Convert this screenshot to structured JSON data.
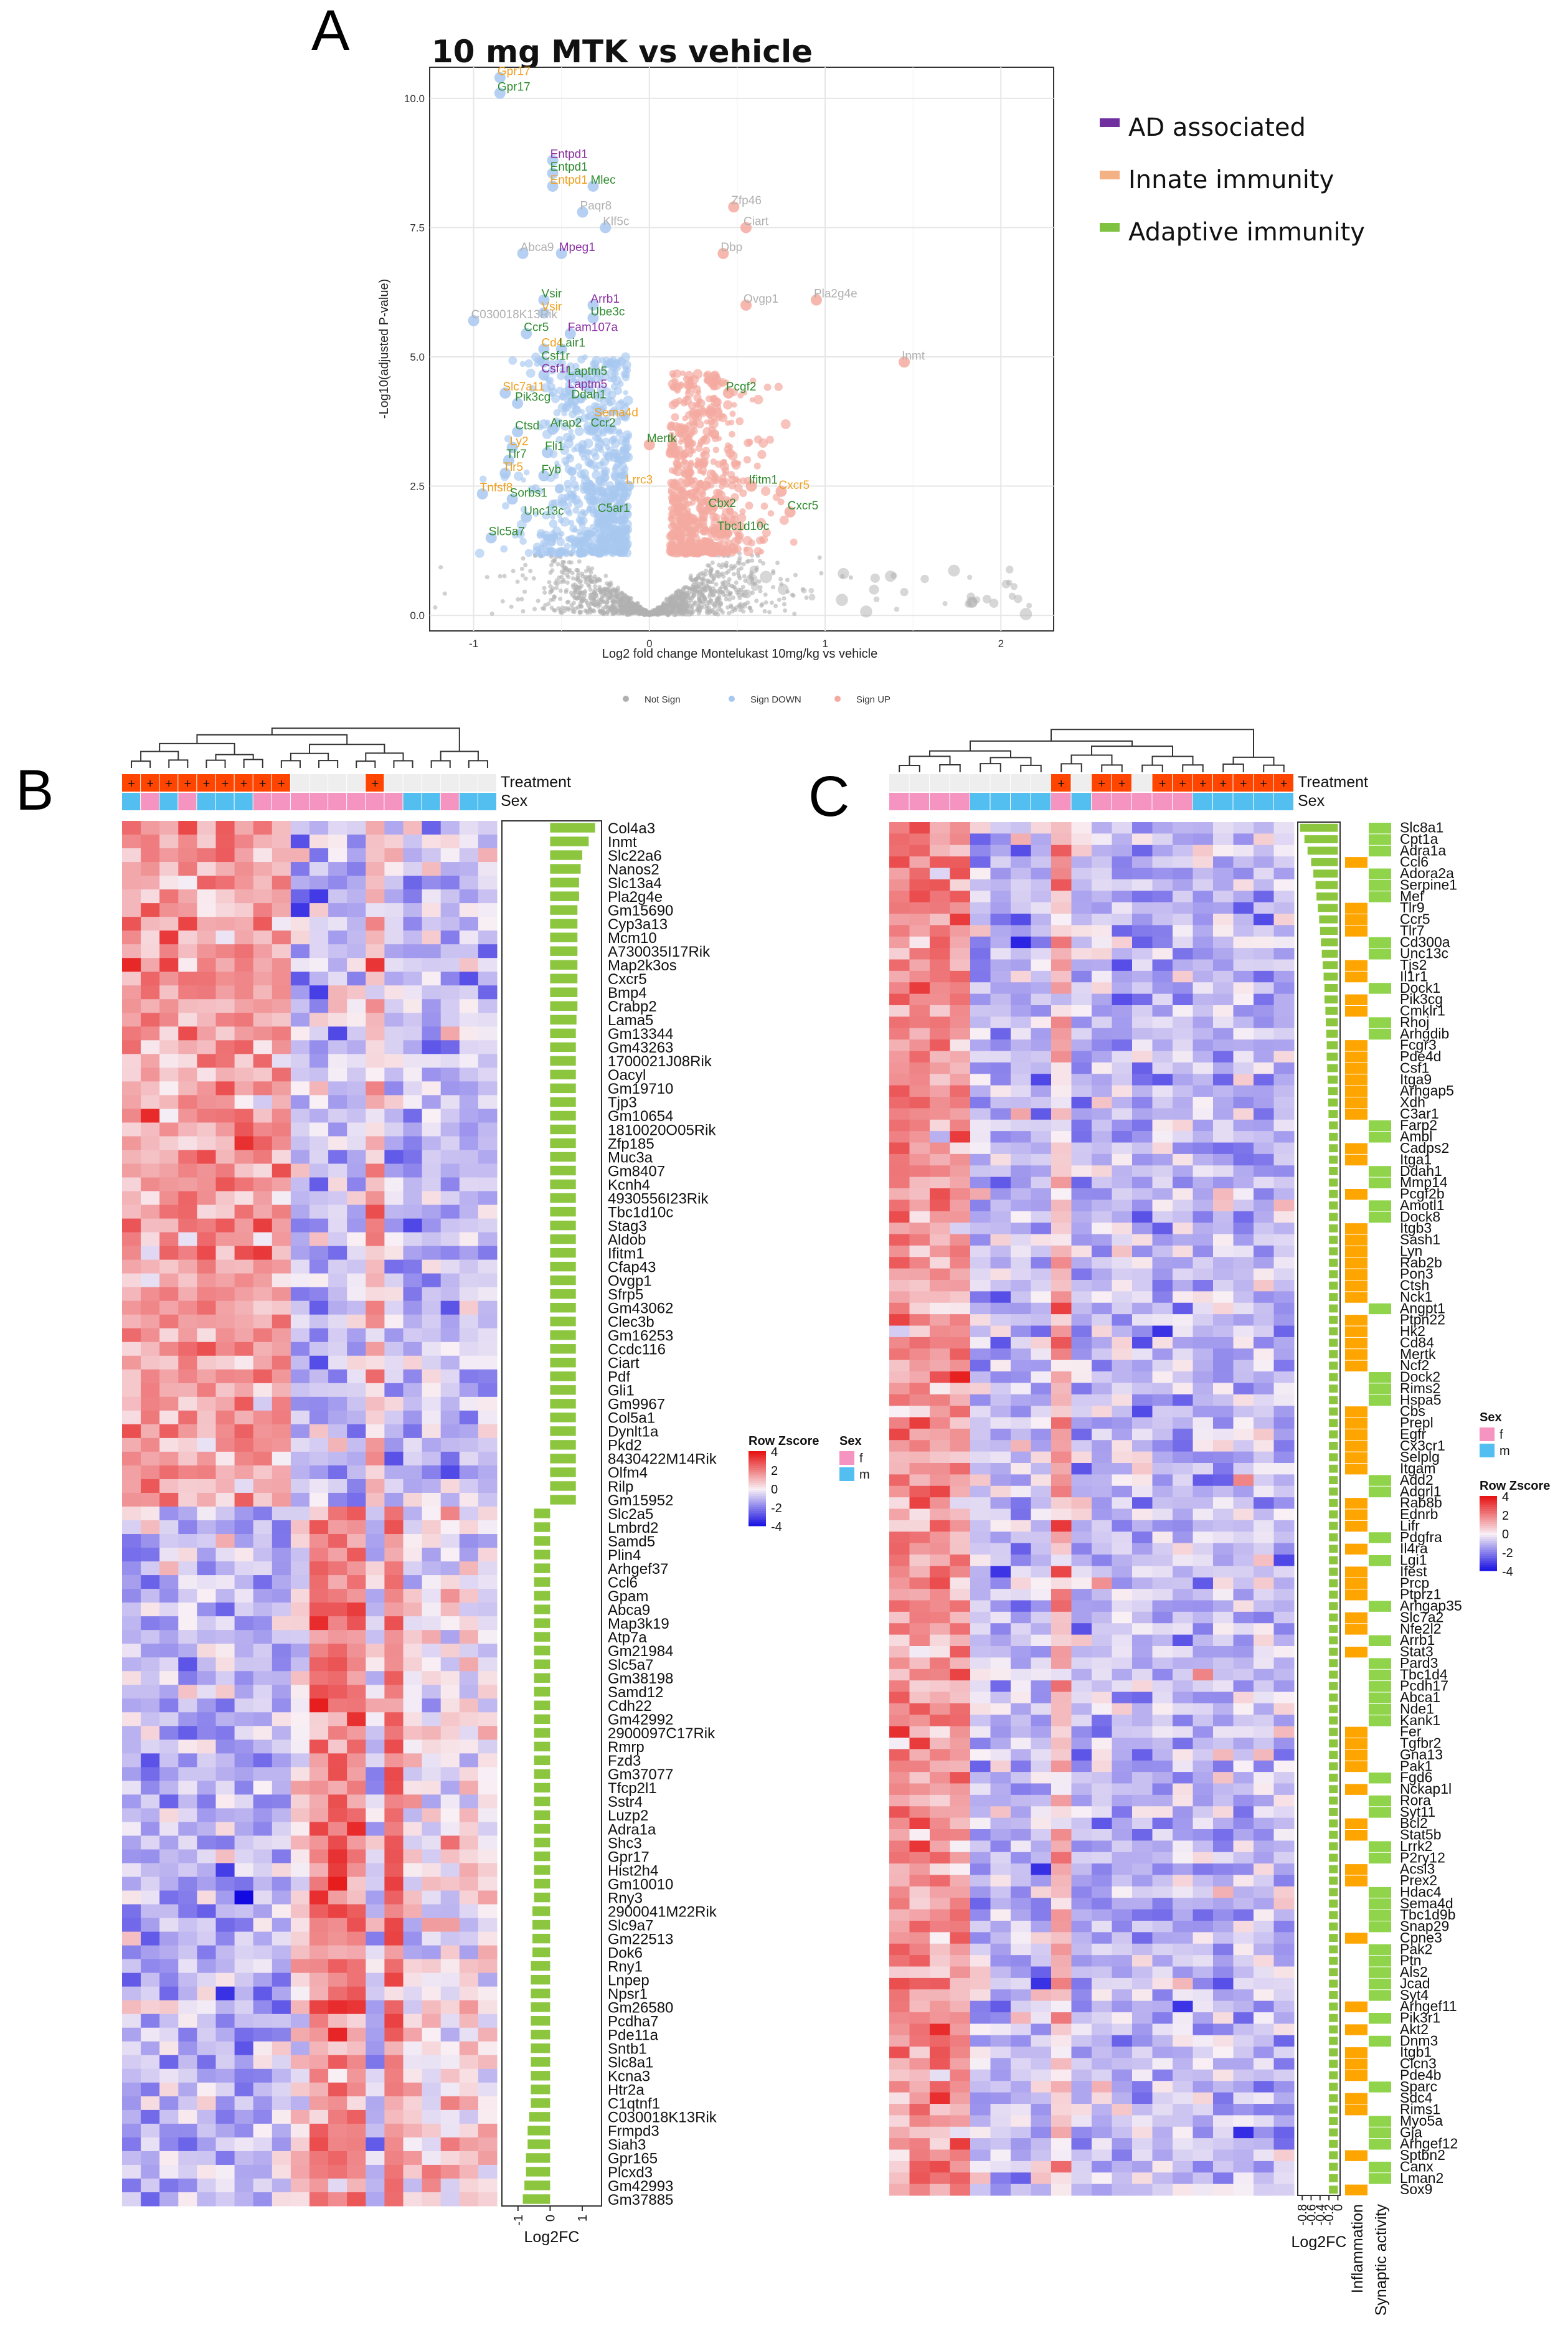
{
  "panels": {
    "a": "A",
    "b": "B",
    "c": "C"
  },
  "chart_data": [
    {
      "type": "scatter",
      "title": "10 mg MTK vs vehicle",
      "xlabel": "Log2 fold change Montelukast 10mg/kg vs vehicle",
      "ylabel": "-Log10(adjusted P-value)",
      "xlim": [
        -1.25,
        2.3
      ],
      "ylim": [
        -0.3,
        10.6
      ],
      "x_ticks": [
        -1,
        0,
        1,
        2
      ],
      "y_ticks": [
        0.0,
        2.5,
        5.0,
        7.5,
        10.0
      ],
      "grid": true,
      "legend_position": "bottom",
      "series": [
        {
          "name": "Not Sign",
          "color": "#b0b0b0"
        },
        {
          "name": "Sign DOWN",
          "color": "#a8c8f0"
        },
        {
          "name": "Sign UP",
          "color": "#f4aaa0"
        }
      ],
      "category_legend": [
        {
          "name": "AD associated",
          "color": "#7030a0"
        },
        {
          "name": "Innate immunity",
          "color": "#f4b183"
        },
        {
          "name": "Adaptive immunity",
          "color": "#7fc241"
        }
      ],
      "labeled_points": [
        {
          "label": "Gpr17",
          "x": -0.85,
          "y": 10.4,
          "class": "innate"
        },
        {
          "label": "Gpr17",
          "x": -0.85,
          "y": 10.1,
          "class": "adaptive"
        },
        {
          "label": "Entpd1",
          "x": -0.55,
          "y": 8.8,
          "class": "ad"
        },
        {
          "label": "Entpd1",
          "x": -0.55,
          "y": 8.55,
          "class": "adaptive"
        },
        {
          "label": "Entpd1",
          "x": -0.55,
          "y": 8.3,
          "class": "innate"
        },
        {
          "label": "Mlec",
          "x": -0.32,
          "y": 8.3,
          "class": "adaptive"
        },
        {
          "label": "Paqr8",
          "x": -0.38,
          "y": 7.8,
          "class": "none"
        },
        {
          "label": "Klf5c",
          "x": -0.25,
          "y": 7.5,
          "class": "none"
        },
        {
          "label": "Abca9",
          "x": -0.72,
          "y": 7.0,
          "class": "none"
        },
        {
          "label": "Mpeg1",
          "x": -0.5,
          "y": 7.0,
          "class": "ad"
        },
        {
          "label": "Zfp46",
          "x": 0.48,
          "y": 7.9,
          "class": "none"
        },
        {
          "label": "Ciart",
          "x": 0.55,
          "y": 7.5,
          "class": "none"
        },
        {
          "label": "Dbp",
          "x": 0.42,
          "y": 7.0,
          "class": "none"
        },
        {
          "label": "Pla2g4e",
          "x": 0.95,
          "y": 6.1,
          "class": "none"
        },
        {
          "label": "Ovgp1",
          "x": 0.55,
          "y": 6.0,
          "class": "none"
        },
        {
          "label": "Inmt",
          "x": 1.45,
          "y": 4.9,
          "class": "none"
        },
        {
          "label": "C030018K13Rik",
          "x": -1.0,
          "y": 5.7,
          "class": "none"
        },
        {
          "label": "Vsir",
          "x": -0.6,
          "y": 6.1,
          "class": "adaptive"
        },
        {
          "label": "Vsir",
          "x": -0.6,
          "y": 5.85,
          "class": "innate"
        },
        {
          "label": "Arrb1",
          "x": -0.32,
          "y": 6.0,
          "class": "ad"
        },
        {
          "label": "Ube3c",
          "x": -0.32,
          "y": 5.75,
          "class": "adaptive"
        },
        {
          "label": "Ccr5",
          "x": -0.7,
          "y": 5.45,
          "class": "adaptive"
        },
        {
          "label": "Fam107a",
          "x": -0.45,
          "y": 5.45,
          "class": "ad"
        },
        {
          "label": "Cd4",
          "x": -0.6,
          "y": 5.15,
          "class": "innate"
        },
        {
          "label": "Lair1",
          "x": -0.5,
          "y": 5.15,
          "class": "adaptive"
        },
        {
          "label": "Csf1r",
          "x": -0.6,
          "y": 4.9,
          "class": "adaptive"
        },
        {
          "label": "Csf1r",
          "x": -0.6,
          "y": 4.65,
          "class": "ad"
        },
        {
          "label": "Laptm5",
          "x": -0.45,
          "y": 4.6,
          "class": "adaptive"
        },
        {
          "label": "Laptm5",
          "x": -0.45,
          "y": 4.35,
          "class": "ad"
        },
        {
          "label": "Slc7a11",
          "x": -0.82,
          "y": 4.3,
          "class": "innate"
        },
        {
          "label": "Pik3cg",
          "x": -0.75,
          "y": 4.1,
          "class": "adaptive"
        },
        {
          "label": "Ddah1",
          "x": -0.43,
          "y": 4.15,
          "class": "adaptive"
        },
        {
          "label": "Sema4d",
          "x": -0.3,
          "y": 3.8,
          "class": "innate"
        },
        {
          "label": "Ctsd",
          "x": -0.75,
          "y": 3.55,
          "class": "adaptive"
        },
        {
          "label": "Arap2",
          "x": -0.55,
          "y": 3.6,
          "class": "adaptive"
        },
        {
          "label": "Ccr2",
          "x": -0.32,
          "y": 3.6,
          "class": "adaptive"
        },
        {
          "label": "Ly2",
          "x": -0.78,
          "y": 3.25,
          "class": "innate"
        },
        {
          "label": "Tlr7",
          "x": -0.8,
          "y": 3.0,
          "class": "adaptive"
        },
        {
          "label": "Fli1",
          "x": -0.58,
          "y": 3.15,
          "class": "adaptive"
        },
        {
          "label": "Tlr5",
          "x": -0.82,
          "y": 2.75,
          "class": "innate"
        },
        {
          "label": "Fyb",
          "x": -0.6,
          "y": 2.7,
          "class": "adaptive"
        },
        {
          "label": "Mertk",
          "x": 0.0,
          "y": 3.3,
          "class": "adaptive"
        },
        {
          "label": "Pcgf2",
          "x": 0.45,
          "y": 4.3,
          "class": "adaptive"
        },
        {
          "label": "Lrrc3",
          "x": -0.12,
          "y": 2.5,
          "class": "innate"
        },
        {
          "label": "Tnfsf8",
          "x": -0.95,
          "y": 2.35,
          "class": "innate"
        },
        {
          "label": "Sorbs1",
          "x": -0.78,
          "y": 2.25,
          "class": "adaptive"
        },
        {
          "label": "Unc13c",
          "x": -0.7,
          "y": 1.9,
          "class": "adaptive"
        },
        {
          "label": "Slc5a7",
          "x": -0.9,
          "y": 1.5,
          "class": "adaptive"
        },
        {
          "label": "C5ar1",
          "x": -0.28,
          "y": 1.95,
          "class": "adaptive"
        },
        {
          "label": "Ifitm1",
          "x": 0.58,
          "y": 2.5,
          "class": "adaptive"
        },
        {
          "label": "Cxcr5",
          "x": 0.75,
          "y": 2.4,
          "class": "innate"
        },
        {
          "label": "Cxcr5",
          "x": 0.8,
          "y": 2.0,
          "class": "adaptive"
        },
        {
          "label": "Cbx2",
          "x": 0.35,
          "y": 2.05,
          "class": "adaptive"
        },
        {
          "label": "Tbc1d10c",
          "x": 0.4,
          "y": 1.6,
          "class": "adaptive"
        }
      ]
    },
    {
      "type": "heatmap",
      "row_annotations": {
        "treatment": "Treatment",
        "sex": "Sex"
      },
      "treatment_symbol": "+",
      "log2fc_label": "Log2FC",
      "log2fc_ticks": [
        "-1",
        "0",
        "1"
      ],
      "legend": {
        "zscore_title": "Row Zscore",
        "zscore_ticks": [
          "4",
          "2",
          "0",
          "-2",
          "-4"
        ],
        "sex_title": "Sex",
        "sex_levels": [
          "f",
          "m"
        ]
      },
      "columns": 20,
      "treatment_pattern": [
        1,
        1,
        1,
        1,
        1,
        1,
        1,
        1,
        1,
        0,
        0,
        0,
        0,
        1,
        0,
        0,
        0,
        0,
        0,
        0
      ],
      "sex_pattern": [
        "m",
        "f",
        "m",
        "f",
        "m",
        "m",
        "m",
        "f",
        "f",
        "f",
        "f",
        "f",
        "f",
        "f",
        "f",
        "m",
        "m",
        "f",
        "m",
        "m"
      ],
      "genes": [
        "Col4a3",
        "Inmt",
        "Slc22a6",
        "Nanos2",
        "Slc13a4",
        "Pla2g4e",
        "Gm15690",
        "Cyp3a13",
        "Mcm10",
        "A730035I17Rik",
        "Map2k3os",
        "Cxcr5",
        "Bmp4",
        "Crabp2",
        "Lama5",
        "Gm13344",
        "Gm43263",
        "1700021J08Rik",
        "Oacyl",
        "Gm19710",
        "Tjp3",
        "Gm10654",
        "1810020O05Rik",
        "Zfp185",
        "Muc3a",
        "Gm8407",
        "Kcnh4",
        "4930556I23Rik",
        "Tbc1d10c",
        "Stag3",
        "Aldob",
        "Ifitm1",
        "Cfap43",
        "Ovgp1",
        "Sfrp5",
        "Gm43062",
        "Clec3b",
        "Gm16253",
        "Ccdc116",
        "Ciart",
        "Pdf",
        "Gli1",
        "Gm9967",
        "Col5a1",
        "Dynlt1a",
        "Pkd2",
        "8430422M14Rik",
        "Olfm4",
        "Rilp",
        "Gm15952",
        "Slc2a5",
        "Lmbrd2",
        "Samd5",
        "Plin4",
        "Arhgef37",
        "Ccl6",
        "Gpam",
        "Abca9",
        "Map3k19",
        "Atp7a",
        "Gm21984",
        "Slc5a7",
        "Gm38198",
        "Samd12",
        "Cdh22",
        "Gm42992",
        "2900097C17Rik",
        "Rmrp",
        "Fzd3",
        "Gm37077",
        "Tfcp2l1",
        "Sstr4",
        "Luzp2",
        "Adra1a",
        "Shc3",
        "Gpr17",
        "Hist2h4",
        "Gm10010",
        "Rny3",
        "2900041M22Rik",
        "Slc9a7",
        "Gm22513",
        "Dok6",
        "Rny1",
        "Lnpep",
        "Npsr1",
        "Gm26580",
        "Pcdha7",
        "Pde11a",
        "Sntb1",
        "Slc8a1",
        "Kcna3",
        "Htr2a",
        "C1qtnf1",
        "C030018K13Rik",
        "Frmpd3",
        "Siah3",
        "Gpr165",
        "Plcxd3",
        "Gm42993",
        "Gm37885"
      ],
      "log2fc_values": [
        1.4,
        1.2,
        1.0,
        0.95,
        0.9,
        0.9,
        0.85,
        0.85,
        0.85,
        0.85,
        0.85,
        0.85,
        0.85,
        0.85,
        0.82,
        0.8,
        0.8,
        0.8,
        0.8,
        0.8,
        0.8,
        0.8,
        0.8,
        0.8,
        0.8,
        0.8,
        0.8,
        0.8,
        0.8,
        0.8,
        0.8,
        0.8,
        0.8,
        0.8,
        0.8,
        0.8,
        0.8,
        0.8,
        0.8,
        0.8,
        0.8,
        0.8,
        0.8,
        0.8,
        0.8,
        0.8,
        0.8,
        0.8,
        0.8,
        0.8,
        -0.5,
        -0.5,
        -0.5,
        -0.5,
        -0.5,
        -0.5,
        -0.5,
        -0.5,
        -0.5,
        -0.5,
        -0.5,
        -0.5,
        -0.5,
        -0.5,
        -0.5,
        -0.5,
        -0.5,
        -0.5,
        -0.5,
        -0.5,
        -0.5,
        -0.5,
        -0.5,
        -0.5,
        -0.5,
        -0.5,
        -0.5,
        -0.5,
        -0.5,
        -0.55,
        -0.55,
        -0.55,
        -0.55,
        -0.6,
        -0.6,
        -0.6,
        -0.6,
        -0.6,
        -0.6,
        -0.6,
        -0.6,
        -0.6,
        -0.6,
        -0.6,
        -0.65,
        -0.7,
        -0.7,
        -0.75,
        -0.75,
        -0.8,
        -0.85
      ],
      "log2fc_range": [
        -1.5,
        1.6
      ]
    },
    {
      "type": "heatmap",
      "row_annotations": {
        "treatment": "Treatment",
        "sex": "Sex"
      },
      "treatment_symbol": "+",
      "log2fc_label": "Log2FC",
      "log2fc_ticks": [
        "-0.8",
        "-0.6",
        "-0.4",
        "-0.2",
        "0"
      ],
      "category_labels": [
        "Inflammation",
        "Synaptic activity"
      ],
      "category_colors": {
        "inflammation": "#ffa500",
        "synaptic": "#8fd44a"
      },
      "legend": {
        "zscore_title": "Row Zscore",
        "zscore_ticks": [
          "4",
          "2",
          "0",
          "-2",
          "-4"
        ],
        "sex_title": "Sex",
        "sex_levels": [
          "f",
          "m"
        ]
      },
      "columns": 20,
      "treatment_pattern": [
        0,
        0,
        0,
        0,
        0,
        0,
        0,
        0,
        1,
        0,
        1,
        1,
        0,
        1,
        1,
        1,
        1,
        1,
        1,
        1
      ],
      "sex_pattern": [
        "f",
        "f",
        "f",
        "f",
        "m",
        "m",
        "m",
        "m",
        "f",
        "m",
        "f",
        "f",
        "f",
        "f",
        "f",
        "m",
        "m",
        "m",
        "m",
        "m"
      ],
      "genes": [
        "Slc8a1",
        "Cpt1a",
        "Adra1a",
        "Ccl6",
        "Adora2a",
        "Serpine1",
        "Mef",
        "Tlr9",
        "Ccr5",
        "Tlr7",
        "Cd300a",
        "Unc13c",
        "Tjs2",
        "Il1r1",
        "Dock1",
        "Pik3cg",
        "Cmklr1",
        "Rhoj",
        "Arhgdib",
        "Fcgr3",
        "Pde4d",
        "Csf1",
        "Itga9",
        "Arhgap5",
        "Xdh",
        "C3ar1",
        "Farp2",
        "Ambl",
        "Cadps2",
        "Itga1",
        "Ddah1",
        "Mmp14",
        "Pcgf2b",
        "Amotl1",
        "Dock8",
        "Itgb3",
        "Sash1",
        "Lyn",
        "Rab2b",
        "Pon3",
        "Ctsh",
        "Nck1",
        "Angpt1",
        "Ptpn22",
        "Hk2",
        "Cd84",
        "Mertk",
        "Ncf2",
        "Dock2",
        "Rims2",
        "Hspa5",
        "Cbs",
        "Prepl",
        "Egfr",
        "Cx3cr1",
        "Selplg",
        "Itgam",
        "Add2",
        "Adgrl1",
        "Rab8b",
        "Ednrb",
        "Lifr",
        "Pdgfra",
        "Il4ra",
        "Lgi1",
        "Ifest",
        "Prcp",
        "Ptprz1",
        "Arhgap35",
        "Slc7a2",
        "Nfe2l2",
        "Arrb1",
        "Stat3",
        "Pard3",
        "Tbc1d4",
        "Pcdh17",
        "Abca1",
        "Nde1",
        "Kank1",
        "Fer",
        "Tgfbr2",
        "Gna13",
        "Pak1",
        "Fgd6",
        "Nckap1l",
        "Rora",
        "Syt11",
        "Bcl2",
        "Stat5b",
        "Lrrk2",
        "P2ry12",
        "Acsl3",
        "Prex2",
        "Hdac4",
        "Sema4d",
        "Tbc1d9b",
        "Snap29",
        "Cpne3",
        "Pak2",
        "Ptn",
        "Als2",
        "Jcad",
        "Syt4",
        "Arhgef11",
        "Pik3r1",
        "Akt2",
        "Dnm3",
        "Itgb1",
        "Clcn3",
        "Pde4b",
        "Sparc",
        "Sdc4",
        "Rims1",
        "Myo5a",
        "Gja",
        "Arhgef12",
        "Sptbn2",
        "Canx",
        "Lman2",
        "Sox9"
      ],
      "log2fc_values": [
        -0.85,
        -0.75,
        -0.68,
        -0.6,
        -0.55,
        -0.5,
        -0.48,
        -0.45,
        -0.42,
        -0.4,
        -0.38,
        -0.36,
        -0.34,
        -0.32,
        -0.3,
        -0.3,
        -0.28,
        -0.27,
        -0.26,
        -0.25,
        -0.25,
        -0.24,
        -0.23,
        -0.22,
        -0.22,
        -0.21,
        -0.2,
        -0.2,
        -0.2,
        -0.2,
        -0.2,
        -0.2,
        -0.2,
        -0.2,
        -0.2,
        -0.2,
        -0.2,
        -0.2,
        -0.2,
        -0.2,
        -0.2,
        -0.2,
        -0.2,
        -0.2,
        -0.2,
        -0.2,
        -0.2,
        -0.2,
        -0.2,
        -0.2,
        -0.2,
        -0.2,
        -0.2,
        -0.2,
        -0.2,
        -0.2,
        -0.2,
        -0.2,
        -0.2,
        -0.2,
        -0.2,
        -0.2,
        -0.2,
        -0.2,
        -0.2,
        -0.2,
        -0.2,
        -0.2,
        -0.2,
        -0.2,
        -0.2,
        -0.2,
        -0.2,
        -0.2,
        -0.2,
        -0.2,
        -0.2,
        -0.2,
        -0.2,
        -0.2,
        -0.2,
        -0.2,
        -0.2,
        -0.2,
        -0.2,
        -0.2,
        -0.2,
        -0.2,
        -0.2,
        -0.2,
        -0.2,
        -0.2,
        -0.2,
        -0.2,
        -0.2,
        -0.2,
        -0.2,
        -0.2,
        -0.2,
        -0.2,
        -0.2,
        -0.2,
        -0.2,
        -0.2,
        -0.2,
        -0.2,
        -0.2,
        -0.2,
        -0.2,
        -0.2,
        -0.2,
        -0.2,
        -0.2,
        -0.2,
        -0.2,
        -0.2,
        -0.2,
        -0.2,
        -0.2,
        -0.2
      ],
      "log2fc_range": [
        -0.9,
        0.05
      ],
      "categories": [
        "synaptic",
        "synaptic",
        "synaptic",
        "inflammation",
        "synaptic",
        "synaptic",
        "synaptic",
        "inflammation",
        "inflammation",
        "inflammation",
        "synaptic",
        "synaptic",
        "inflammation",
        "inflammation",
        "synaptic",
        "inflammation",
        "inflammation",
        "synaptic",
        "synaptic",
        "inflammation",
        "inflammation",
        "inflammation",
        "inflammation",
        "inflammation",
        "inflammation",
        "inflammation",
        "synaptic",
        "synaptic",
        "inflammation",
        "inflammation",
        "synaptic",
        "synaptic",
        "inflammation",
        "synaptic",
        "synaptic",
        "inflammation",
        "inflammation",
        "inflammation",
        "inflammation",
        "inflammation",
        "inflammation",
        "inflammation",
        "synaptic",
        "inflammation",
        "inflammation",
        "inflammation",
        "inflammation",
        "inflammation",
        "synaptic",
        "synaptic",
        "synaptic",
        "inflammation",
        "inflammation",
        "inflammation",
        "inflammation",
        "inflammation",
        "inflammation",
        "synaptic",
        "synaptic",
        "inflammation",
        "inflammation",
        "inflammation",
        "synaptic",
        "inflammation",
        "synaptic",
        "inflammation",
        "inflammation",
        "inflammation",
        "synaptic",
        "inflammation",
        "inflammation",
        "synaptic",
        "inflammation",
        "synaptic",
        "synaptic",
        "synaptic",
        "synaptic",
        "synaptic",
        "synaptic",
        "inflammation",
        "inflammation",
        "inflammation",
        "inflammation",
        "synaptic",
        "inflammation",
        "synaptic",
        "synaptic",
        "inflammation",
        "inflammation",
        "synaptic",
        "synaptic",
        "inflammation",
        "inflammation",
        "synaptic",
        "synaptic",
        "synaptic",
        "synaptic",
        "inflammation",
        "synaptic",
        "synaptic",
        "synaptic",
        "synaptic",
        "synaptic",
        "inflammation",
        "synaptic",
        "inflammation",
        "synaptic",
        "inflammation",
        "inflammation",
        "inflammation",
        "synaptic",
        "inflammation",
        "inflammation",
        "synaptic",
        "synaptic",
        "synaptic",
        "inflammation",
        "synaptic",
        "synaptic",
        "inflammation"
      ]
    }
  ]
}
